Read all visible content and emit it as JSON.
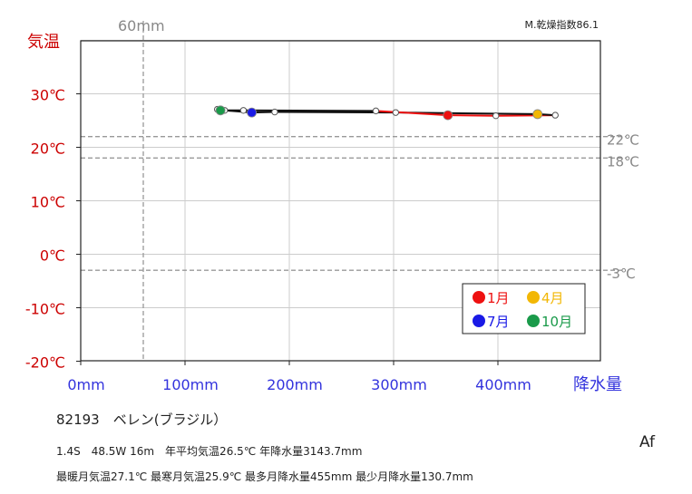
{
  "chart_data": {
    "type": "scatter",
    "title": "",
    "aridity_label": "M.乾燥指数86.1",
    "xlabel": "降水量",
    "ylabel": "気温",
    "xlim": [
      0,
      500
    ],
    "ylim": [
      -20,
      50
    ],
    "x_ticks": [
      "0mm",
      "100mm",
      "200mm",
      "300mm",
      "400mm"
    ],
    "y_ticks": [
      "30℃",
      "20℃",
      "10℃",
      "0℃",
      "-10℃",
      "-20℃"
    ],
    "y_tick_values": [
      30,
      20,
      10,
      0,
      -10,
      -20
    ],
    "ref_lines_temp": [
      {
        "value": 22,
        "label": "22℃"
      },
      {
        "value": 18,
        "label": "18℃"
      },
      {
        "value": -3,
        "label": "-3℃"
      }
    ],
    "ref_line_precip": {
      "value": 60,
      "label": "60mm"
    },
    "grid": true,
    "legend_position": "bottom-right",
    "months": [
      {
        "month": 1,
        "precip": 352,
        "temp": 26.0
      },
      {
        "month": 2,
        "precip": 398,
        "temp": 25.9
      },
      {
        "month": 3,
        "precip": 455,
        "temp": 26.0
      },
      {
        "month": 4,
        "precip": 438,
        "temp": 26.2
      },
      {
        "month": 5,
        "precip": 302,
        "temp": 26.5
      },
      {
        "month": 6,
        "precip": 186,
        "temp": 26.6
      },
      {
        "month": 7,
        "precip": 164,
        "temp": 26.5
      },
      {
        "month": 8,
        "precip": 138,
        "temp": 26.9
      },
      {
        "month": 9,
        "precip": 131,
        "temp": 27.1
      },
      {
        "month": 10,
        "precip": 134,
        "temp": 26.9
      },
      {
        "month": 11,
        "precip": 156,
        "temp": 26.9
      },
      {
        "month": 12,
        "precip": 283,
        "temp": 26.8
      }
    ],
    "legend": [
      {
        "month": 1,
        "label": "1月",
        "color": "#ee1111"
      },
      {
        "month": 4,
        "label": "4月",
        "color": "#f2b705"
      },
      {
        "month": 7,
        "label": "7月",
        "color": "#1a1ae6"
      },
      {
        "month": 10,
        "label": "10月",
        "color": "#1a9a4a"
      }
    ],
    "colors": {
      "temp_axis": "#cc0000",
      "precip_axis": "#3333dd",
      "ref_line": "#999999",
      "grid": "#cccccc",
      "line_dark": "#111111",
      "line_red": "#ee1111"
    }
  },
  "station": "82193　ベレン(ブラジル）",
  "info_line1": "1.4S　48.5W 16m　年平均気温26.5℃ 年降水量3143.7mm",
  "info_line2": "最暖月気温27.1℃ 最寒月気温25.9℃ 最多月降水量455mm 最少月降水量130.7mm",
  "climate_class": "Af"
}
